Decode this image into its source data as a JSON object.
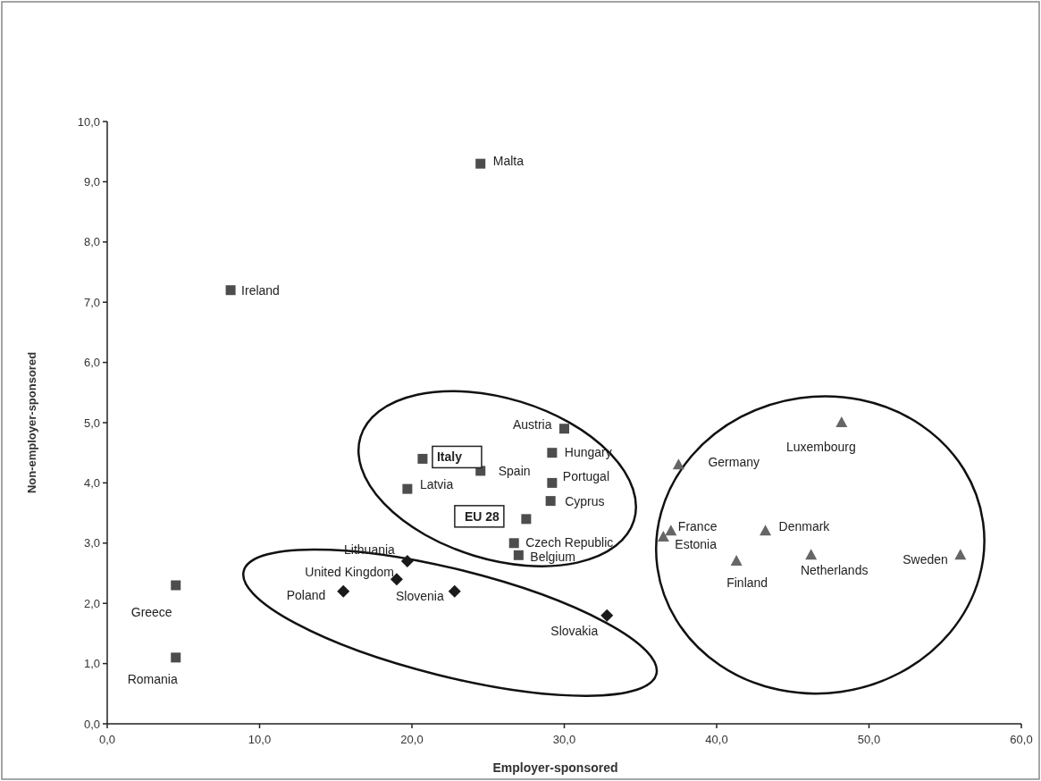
{
  "chart_data": {
    "type": "scatter",
    "xlabel": "Employer-sponsored",
    "ylabel": "Non-employer-sponsored",
    "xlim": [
      0,
      60
    ],
    "ylim": [
      0,
      10
    ],
    "xticks": [
      {
        "value": 0,
        "label": "0,0"
      },
      {
        "value": 10,
        "label": "10,0"
      },
      {
        "value": 20,
        "label": "20,0"
      },
      {
        "value": 30,
        "label": "30,0"
      },
      {
        "value": 40,
        "label": "40,0"
      },
      {
        "value": 50,
        "label": "50,0"
      },
      {
        "value": 60,
        "label": "60,0"
      }
    ],
    "yticks": [
      {
        "value": 0,
        "label": "0,0"
      },
      {
        "value": 1,
        "label": "1,0"
      },
      {
        "value": 2,
        "label": "2,0"
      },
      {
        "value": 3,
        "label": "3,0"
      },
      {
        "value": 4,
        "label": "4,0"
      },
      {
        "value": 5,
        "label": "5,0"
      },
      {
        "value": 6,
        "label": "6,0"
      },
      {
        "value": 7,
        "label": "7,0"
      },
      {
        "value": 8,
        "label": "8,0"
      },
      {
        "value": 9,
        "label": "9,0"
      },
      {
        "value": 10,
        "label": "10,0"
      }
    ],
    "grid": false,
    "series": [
      {
        "color": "#4d4d4d",
        "marker": "square",
        "x": [
          24.5,
          8.1,
          4.5,
          4.5,
          20.7,
          19.7,
          24.5,
          30.0,
          29.2,
          29.2,
          29.1,
          27.5,
          26.7,
          27.0
        ],
        "values": [
          9.3,
          7.2,
          2.3,
          1.1,
          4.4,
          3.9,
          4.2,
          4.9,
          4.5,
          4.0,
          3.7,
          3.4,
          3.0,
          2.8
        ]
      },
      {
        "color": "#1a1a1a",
        "marker": "diamond",
        "x": [
          19.7,
          19.0,
          15.5,
          22.8,
          32.8
        ],
        "values": [
          2.7,
          2.4,
          2.2,
          2.2,
          1.8
        ]
      },
      {
        "color": "#666666",
        "marker": "triangle",
        "x": [
          48.2,
          37.5,
          37.0,
          36.5,
          43.2,
          41.3,
          46.2,
          56.0
        ],
        "values": [
          5.0,
          4.3,
          3.2,
          3.1,
          3.2,
          2.7,
          2.8,
          2.8
        ]
      }
    ],
    "annotations": [
      {
        "text": "Malta",
        "x": 24.5,
        "y": 9.3
      },
      {
        "text": "Ireland",
        "x": 8.1,
        "y": 7.2
      },
      {
        "text": "Greece",
        "x": 4.5,
        "y": 2.3
      },
      {
        "text": "Romania",
        "x": 4.5,
        "y": 1.1
      },
      {
        "text": "Italy",
        "x": 20.7,
        "y": 4.4
      },
      {
        "text": "Latvia",
        "x": 19.7,
        "y": 3.9
      },
      {
        "text": "Spain",
        "x": 24.5,
        "y": 4.2
      },
      {
        "text": "Austria",
        "x": 30.0,
        "y": 4.9
      },
      {
        "text": "Hungary",
        "x": 29.2,
        "y": 4.5
      },
      {
        "text": "Portugal",
        "x": 29.2,
        "y": 4.0
      },
      {
        "text": "Cyprus",
        "x": 29.1,
        "y": 3.7
      },
      {
        "text": "EU 28",
        "x": 27.5,
        "y": 3.4
      },
      {
        "text": "Czech Republic",
        "x": 26.7,
        "y": 3.0
      },
      {
        "text": "Belgium",
        "x": 27.0,
        "y": 2.8
      },
      {
        "text": "Lithuania",
        "x": 19.7,
        "y": 2.7
      },
      {
        "text": "United Kingdom",
        "x": 19.0,
        "y": 2.4
      },
      {
        "text": "Poland",
        "x": 15.5,
        "y": 2.2
      },
      {
        "text": "Slovenia",
        "x": 22.8,
        "y": 2.2
      },
      {
        "text": "Slovakia",
        "x": 32.8,
        "y": 1.8
      },
      {
        "text": "Luxembourg",
        "x": 48.2,
        "y": 5.0
      },
      {
        "text": "Germany",
        "x": 37.5,
        "y": 4.3
      },
      {
        "text": "France",
        "x": 37.0,
        "y": 3.2
      },
      {
        "text": "Estonia",
        "x": 36.5,
        "y": 3.1
      },
      {
        "text": "Denmark",
        "x": 43.2,
        "y": 3.2
      },
      {
        "text": "Finland",
        "x": 41.3,
        "y": 2.7
      },
      {
        "text": "Netherlands",
        "x": 46.2,
        "y": 2.8
      },
      {
        "text": "Sweden",
        "x": 56.0,
        "y": 2.8
      }
    ]
  }
}
